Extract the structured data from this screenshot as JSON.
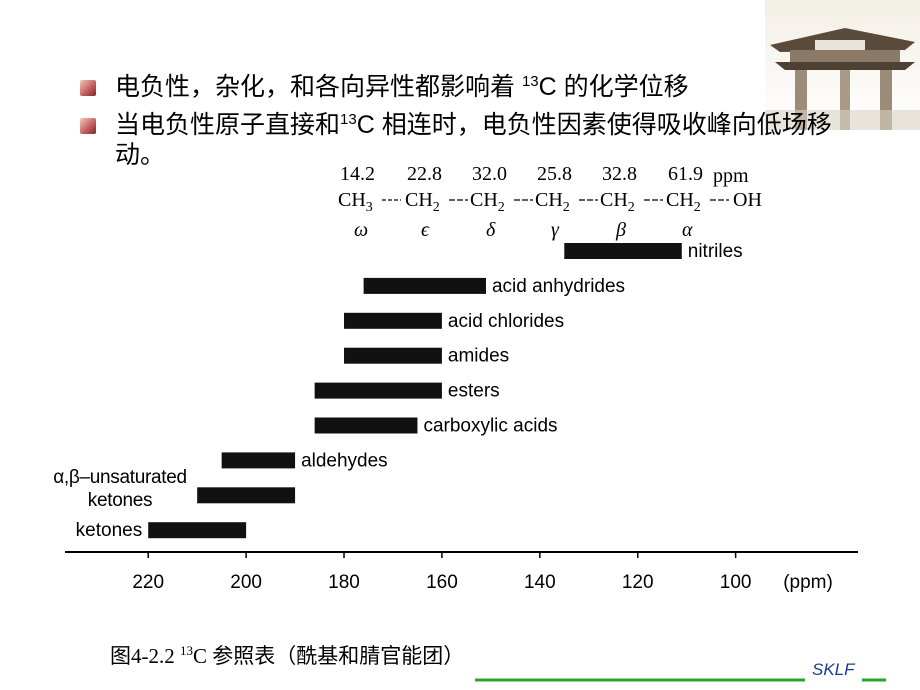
{
  "bullets": [
    {
      "pre": "电负性，杂化，和各向异性都影响着 ",
      "sup": "13",
      "post": "C 的化学位移"
    },
    {
      "pre": "当电负性原子直接和",
      "sup": "13",
      "post": "C 相连时，电负性因素使得吸收峰向低场移动。"
    }
  ],
  "structure": {
    "shifts": [
      "14.2",
      "22.8",
      "32.0",
      "25.8",
      "32.8",
      "61.9"
    ],
    "shift_unit": "ppm",
    "groups": [
      {
        "base": "CH",
        "sub": "3"
      },
      {
        "base": "CH",
        "sub": "2"
      },
      {
        "base": "CH",
        "sub": "2"
      },
      {
        "base": "CH",
        "sub": "2"
      },
      {
        "base": "CH",
        "sub": "2"
      },
      {
        "base": "CH",
        "sub": "2"
      },
      {
        "base": "OH"
      }
    ],
    "positions": [
      "ω",
      "ϵ",
      "δ",
      "γ",
      "β",
      "α"
    ]
  },
  "chart_data": {
    "type": "range-bar",
    "categories": [
      "nitriles",
      "acid anhydrides",
      "acid chlorides",
      "amides",
      "esters",
      "carboxylic acids",
      "aldehydes",
      "α,β–unsaturated ketones",
      "ketones"
    ],
    "ranges": [
      [
        135,
        111
      ],
      [
        176,
        151
      ],
      [
        180,
        160
      ],
      [
        180,
        160
      ],
      [
        186,
        160
      ],
      [
        186,
        165
      ],
      [
        205,
        190
      ],
      [
        210,
        190
      ],
      [
        220,
        200
      ]
    ],
    "color": "#111111",
    "xlim": [
      237,
      75
    ],
    "xticks": [
      220,
      200,
      180,
      160,
      140,
      120,
      100
    ],
    "x_unit_label": "(ppm)"
  },
  "caption": {
    "pre": "图4-2.2 ",
    "sup": "13",
    "post": "C 参照表（酰基和腈官能团）"
  },
  "footer": "SKLF"
}
